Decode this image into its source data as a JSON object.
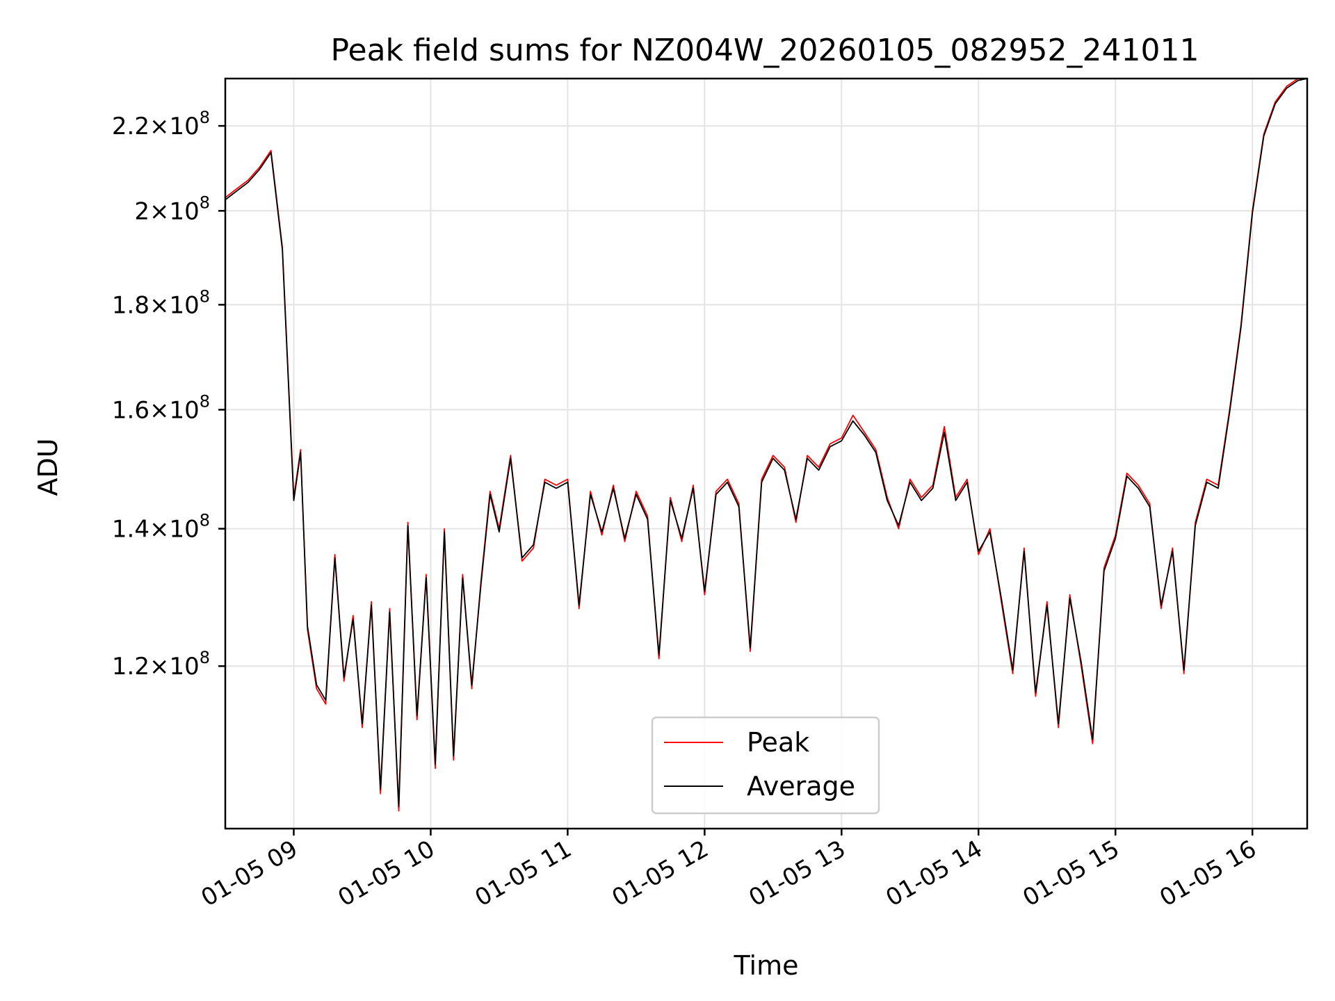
{
  "chart_data": {
    "type": "line",
    "title": "Peak field sums for NZ004W_20260105_082952_241011",
    "xlabel": "Time",
    "ylabel": "ADU",
    "yscale": "log",
    "grid": true,
    "legend_placement": "lower-center",
    "x_range": [
      "01-05 08:30",
      "01-05 16:24"
    ],
    "ylim": [
      100000000,
      232000000
    ],
    "x_ticks": [
      {
        "time": "01-05 09:00",
        "label": "01-05 09"
      },
      {
        "time": "01-05 10:00",
        "label": "01-05 10"
      },
      {
        "time": "01-05 11:00",
        "label": "01-05 11"
      },
      {
        "time": "01-05 12:00",
        "label": "01-05 12"
      },
      {
        "time": "01-05 13:00",
        "label": "01-05 13"
      },
      {
        "time": "01-05 14:00",
        "label": "01-05 14"
      },
      {
        "time": "01-05 15:00",
        "label": "01-05 15"
      },
      {
        "time": "01-05 16:00",
        "label": "01-05 16"
      }
    ],
    "y_ticks": [
      {
        "value": 120000000,
        "mantissa": "1.2",
        "exponent": "8"
      },
      {
        "value": 140000000,
        "mantissa": "1.4",
        "exponent": "8"
      },
      {
        "value": 160000000,
        "mantissa": "1.6",
        "exponent": "8"
      },
      {
        "value": 180000000,
        "mantissa": "1.8",
        "exponent": "8"
      },
      {
        "value": 200000000,
        "mantissa": "2",
        "exponent": "8"
      },
      {
        "value": 220000000,
        "mantissa": "2.2",
        "exponent": "8"
      }
    ],
    "times": [
      "08:30",
      "08:35",
      "08:40",
      "08:45",
      "08:50",
      "08:55",
      "09:00",
      "09:03",
      "09:06",
      "09:10",
      "09:14",
      "09:18",
      "09:22",
      "09:26",
      "09:30",
      "09:34",
      "09:38",
      "09:42",
      "09:46",
      "09:50",
      "09:54",
      "09:58",
      "10:02",
      "10:06",
      "10:10",
      "10:14",
      "10:18",
      "10:22",
      "10:26",
      "10:30",
      "10:35",
      "10:40",
      "10:45",
      "10:50",
      "10:55",
      "11:00",
      "11:05",
      "11:10",
      "11:15",
      "11:20",
      "11:25",
      "11:30",
      "11:35",
      "11:40",
      "11:45",
      "11:50",
      "11:55",
      "12:00",
      "12:05",
      "12:10",
      "12:15",
      "12:20",
      "12:25",
      "12:30",
      "12:35",
      "12:40",
      "12:45",
      "12:50",
      "12:55",
      "13:00",
      "13:05",
      "13:10",
      "13:15",
      "13:20",
      "13:25",
      "13:30",
      "13:35",
      "13:40",
      "13:45",
      "13:50",
      "13:55",
      "14:00",
      "14:05",
      "14:10",
      "14:15",
      "14:20",
      "14:25",
      "14:30",
      "14:35",
      "14:40",
      "14:45",
      "14:50",
      "14:55",
      "15:00",
      "15:05",
      "15:10",
      "15:15",
      "15:20",
      "15:25",
      "15:30",
      "15:35",
      "15:40",
      "15:45",
      "15:50",
      "15:55",
      "16:00",
      "16:05",
      "16:10",
      "16:15",
      "16:20",
      "16:24"
    ],
    "series": [
      {
        "name": "Peak",
        "color": "#ff0000",
        "values": [
          203000000,
          205000000,
          207000000,
          210000000,
          214000000,
          192000000,
          145000000,
          153000000,
          125000000,
          117000000,
          115000000,
          136000000,
          118000000,
          127000000,
          112000000,
          129000000,
          104000000,
          128000000,
          102000000,
          141000000,
          113000000,
          133000000,
          107000000,
          140000000,
          108000000,
          133000000,
          117000000,
          132000000,
          146000000,
          140000000,
          152000000,
          135000000,
          137000000,
          148000000,
          147000000,
          148000000,
          128000000,
          146000000,
          139000000,
          147000000,
          138000000,
          146000000,
          142000000,
          121000000,
          145000000,
          138000000,
          147000000,
          130000000,
          146000000,
          148000000,
          144000000,
          122000000,
          148000000,
          152000000,
          150000000,
          141000000,
          152000000,
          150000000,
          154000000,
          155000000,
          159000000,
          156000000,
          153000000,
          145000000,
          140000000,
          148000000,
          145000000,
          147000000,
          157000000,
          145000000,
          148000000,
          136000000,
          140000000,
          129000000,
          119000000,
          137000000,
          116000000,
          129000000,
          112000000,
          130000000,
          120000000,
          110000000,
          134000000,
          139000000,
          149000000,
          147000000,
          144000000,
          128000000,
          137000000,
          119000000,
          141000000,
          148000000,
          147000000,
          160000000,
          176000000,
          200000000,
          218000000,
          226000000,
          230000000,
          232000000,
          232000000
        ]
      },
      {
        "name": "Average",
        "color": "#000000",
        "values": [
          202500000,
          204500000,
          206500000,
          209500000,
          213500000,
          191500000,
          144500000,
          152500000,
          125500000,
          117500000,
          115500000,
          135500000,
          118500000,
          126500000,
          112500000,
          128500000,
          104500000,
          127500000,
          102500000,
          140500000,
          113500000,
          132500000,
          107500000,
          139500000,
          108500000,
          132500000,
          117500000,
          131500000,
          145500000,
          139500000,
          151500000,
          135500000,
          137500000,
          147500000,
          146500000,
          147500000,
          128500000,
          145500000,
          139500000,
          146500000,
          138500000,
          145500000,
          141500000,
          121500000,
          144500000,
          138500000,
          146500000,
          130500000,
          145500000,
          147500000,
          143500000,
          122500000,
          147500000,
          151500000,
          149500000,
          141500000,
          151500000,
          149500000,
          153500000,
          154500000,
          158000000,
          155500000,
          152500000,
          144500000,
          140500000,
          147500000,
          144500000,
          146500000,
          156000000,
          144500000,
          147500000,
          136500000,
          139500000,
          129500000,
          119500000,
          136500000,
          116500000,
          128500000,
          112500000,
          129500000,
          120500000,
          110500000,
          133500000,
          138500000,
          148500000,
          146500000,
          143500000,
          128500000,
          136500000,
          119500000,
          140500000,
          147500000,
          146500000,
          159500000,
          175500000,
          199500000,
          217500000,
          225500000,
          229500000,
          231500000,
          232000000
        ]
      }
    ]
  }
}
